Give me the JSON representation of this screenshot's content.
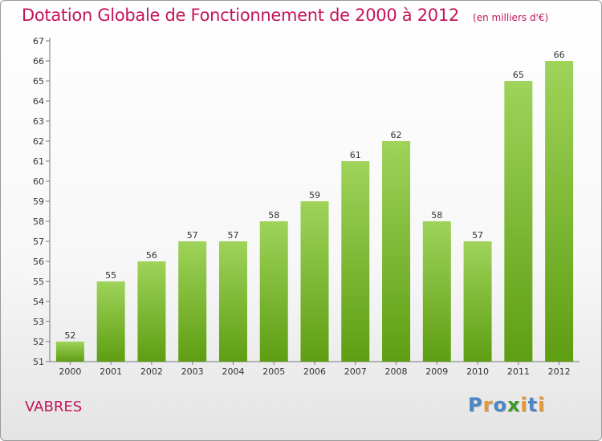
{
  "chart_data": {
    "type": "bar",
    "title": "Dotation Globale de Fonctionnement de 2000 à 2012",
    "subtitle": "(en milliers d'€)",
    "categories": [
      "2000",
      "2001",
      "2002",
      "2003",
      "2004",
      "2005",
      "2006",
      "2007",
      "2008",
      "2009",
      "2010",
      "2011",
      "2012"
    ],
    "values": [
      52,
      55,
      56,
      57,
      57,
      58,
      59,
      61,
      62,
      58,
      57,
      65,
      66
    ],
    "ylim": [
      51,
      67
    ],
    "yticks": [
      51,
      52,
      53,
      54,
      55,
      56,
      57,
      58,
      59,
      60,
      61,
      62,
      63,
      64,
      65,
      66,
      67
    ],
    "grid": false,
    "legend": "none",
    "bar_color_top": "#9fd35a",
    "bar_color_bottom": "#5e9e12",
    "label_color": "#c4145a"
  },
  "commune": "VABRES",
  "logo": {
    "letters": [
      "P",
      "r",
      "o",
      "x",
      "i",
      "t",
      "i"
    ],
    "colors": [
      "#4b86c5",
      "#e8962e",
      "#4b86c5",
      "#3c9a2e",
      "#e8962e",
      "#4b86c5",
      "#e8962e"
    ]
  }
}
